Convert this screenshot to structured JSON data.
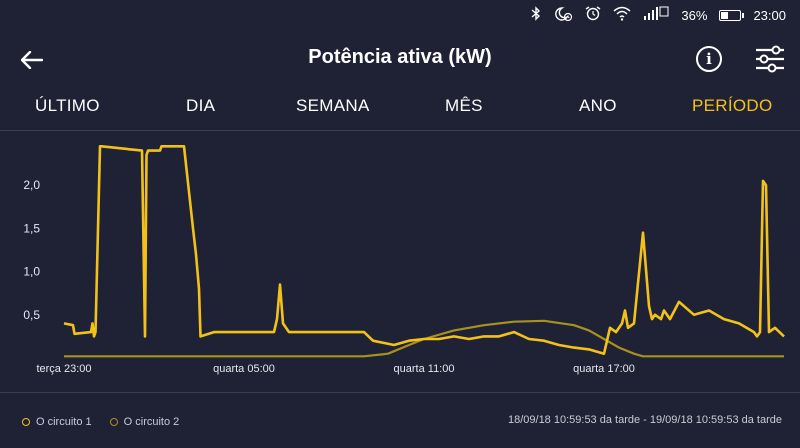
{
  "status_bar": {
    "battery": "36%",
    "time": "23:00",
    "icons": [
      "bluetooth-icon",
      "do-not-disturb-icon",
      "alarm-icon",
      "wifi-icon",
      "signal-icon",
      "battery-icon"
    ],
    "sim_badge": "2"
  },
  "header": {
    "title": "Potência ativa (kW)",
    "back_icon": "arrow-left-icon",
    "info_icon": "info-icon",
    "filter_icon": "sliders-icon"
  },
  "tabs": [
    {
      "label": "ÚLTIMO",
      "active": false
    },
    {
      "label": "DIA",
      "active": false
    },
    {
      "label": "SEMANA",
      "active": false
    },
    {
      "label": "MÊS",
      "active": false
    },
    {
      "label": "ANO",
      "active": false
    },
    {
      "label": "PERÍODO",
      "active": true
    }
  ],
  "colors": {
    "background": "#1f2235",
    "accent": "#f2c21b",
    "circuit1": "#f2c21b",
    "circuit2": "#a8921f"
  },
  "legend": {
    "circuit1": "O circuito 1",
    "circuit2": "O circuito 2"
  },
  "date_range": "18/09/18 10:59:53 da tarde - 19/09/18 10:59:53 da tarde",
  "chart_data": {
    "type": "line",
    "ylim": [
      0,
      2.5
    ],
    "y_ticks": [
      "0,5",
      "1,0",
      "1,5",
      "2,0"
    ],
    "y_tick_values": [
      0.5,
      1.0,
      1.5,
      2.0
    ],
    "xlim": [
      0,
      24
    ],
    "x_ticks": [
      "terça 23:00",
      "quarta 05:00",
      "quarta 11:00",
      "quarta 17:00"
    ],
    "x_tick_values": [
      0,
      6,
      12,
      18
    ],
    "series": [
      {
        "name": "O circuito 1",
        "x": [
          0,
          0.3,
          0.35,
          0.9,
          0.95,
          1.0,
          1.05,
          1.2,
          1.25,
          2.6,
          2.7,
          2.75,
          2.8,
          3.2,
          3.25,
          3.8,
          4.0,
          4.3,
          4.4,
          4.5,
          4.55,
          5.0,
          6.0,
          7.0,
          7.1,
          7.2,
          7.3,
          7.5,
          7.6,
          8.0,
          9.0,
          10.0,
          10.3,
          11.0,
          11.5,
          12.0,
          12.5,
          13.0,
          13.5,
          14.0,
          14.5,
          15.0,
          15.5,
          16.0,
          16.5,
          17.0,
          17.5,
          18.0,
          18.2,
          18.4,
          18.6,
          18.7,
          18.8,
          19.0,
          19.3,
          19.5,
          19.6,
          19.7,
          19.9,
          20.0,
          20.2,
          20.5,
          21.0,
          21.5,
          22.0,
          22.5,
          23.0,
          23.1,
          23.2,
          23.3,
          23.4,
          23.5,
          23.7,
          24.0
        ],
        "y": [
          0.4,
          0.38,
          0.28,
          0.3,
          0.4,
          0.25,
          0.3,
          2.45,
          2.45,
          2.4,
          0.25,
          2.35,
          2.4,
          2.4,
          2.45,
          2.45,
          2.45,
          1.5,
          1.2,
          0.8,
          0.25,
          0.3,
          0.3,
          0.3,
          0.45,
          0.85,
          0.4,
          0.3,
          0.3,
          0.3,
          0.3,
          0.3,
          0.2,
          0.15,
          0.2,
          0.22,
          0.22,
          0.25,
          0.22,
          0.25,
          0.25,
          0.3,
          0.22,
          0.2,
          0.15,
          0.12,
          0.1,
          0.05,
          0.35,
          0.3,
          0.4,
          0.55,
          0.35,
          0.4,
          1.45,
          0.6,
          0.45,
          0.5,
          0.45,
          0.55,
          0.45,
          0.65,
          0.5,
          0.55,
          0.45,
          0.4,
          0.3,
          0.25,
          0.3,
          2.05,
          2.0,
          0.3,
          0.35,
          0.25
        ]
      },
      {
        "name": "O circuito 2",
        "x": [
          0,
          2,
          4,
          6,
          8,
          10,
          10.8,
          11.5,
          12,
          13,
          14,
          15,
          16,
          17,
          17.5,
          18,
          18.5,
          19,
          19.3,
          19.5,
          20,
          22,
          24
        ],
        "y": [
          0.02,
          0.02,
          0.02,
          0.02,
          0.02,
          0.02,
          0.05,
          0.15,
          0.22,
          0.32,
          0.38,
          0.42,
          0.43,
          0.38,
          0.32,
          0.22,
          0.12,
          0.05,
          0.02,
          0.02,
          0.02,
          0.02,
          0.02
        ]
      }
    ]
  }
}
